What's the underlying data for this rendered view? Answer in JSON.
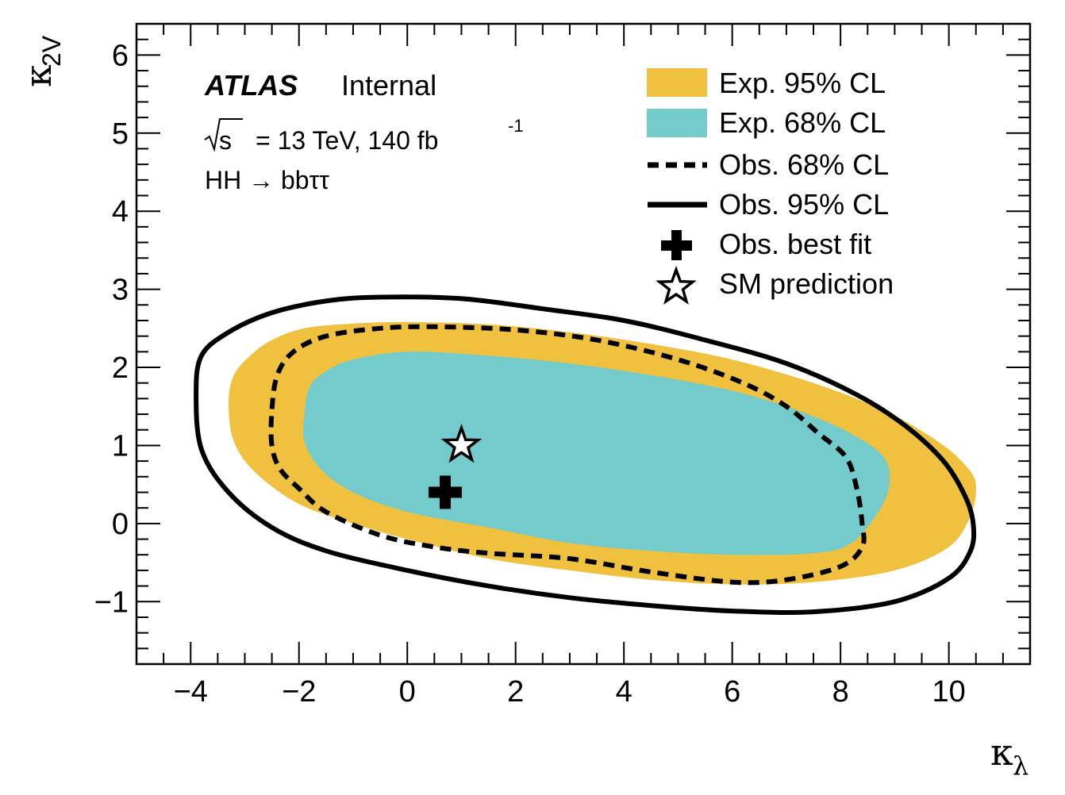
{
  "chart_data": {
    "type": "contour",
    "experiment": "ATLAS",
    "status": "Internal",
    "energy_label": "= 13 TeV, 140 fb",
    "energy_prefix": "s",
    "lumi_exponent": "-1",
    "process": "HH → bbττ",
    "xlabel": "κ",
    "xlabel_sub": "λ",
    "ylabel": "κ",
    "ylabel_sub": "2V",
    "xlim": [
      -5,
      11.5
    ],
    "ylim": [
      -1.8,
      6.4
    ],
    "xticks": [
      -4,
      -2,
      0,
      2,
      4,
      6,
      8,
      10
    ],
    "xtick_labels": [
      "−4",
      "−2",
      "0",
      "2",
      "4",
      "6",
      "8",
      "10"
    ],
    "yticks": [
      -1,
      0,
      1,
      2,
      3,
      4,
      5,
      6
    ],
    "ytick_labels": [
      "−1",
      "0",
      "1",
      "2",
      "3",
      "4",
      "5",
      "6"
    ],
    "legend_position": "top-right",
    "legend": [
      {
        "key": "exp95",
        "label": "Exp. 95% CL",
        "style": "fill",
        "color": "#efc13f"
      },
      {
        "key": "exp68",
        "label": "Exp. 68% CL",
        "style": "fill",
        "color": "#73cbcb"
      },
      {
        "key": "obs68",
        "label": "Obs. 68% CL",
        "style": "dashed",
        "color": "#000000"
      },
      {
        "key": "obs95",
        "label": "Obs. 95% CL",
        "style": "solid",
        "color": "#000000"
      },
      {
        "key": "bestfit",
        "label": "Obs. best fit",
        "style": "cross",
        "color": "#000000"
      },
      {
        "key": "sm",
        "label": "SM prediction",
        "style": "star",
        "color": "#000000"
      }
    ],
    "series": [
      {
        "key": "exp95",
        "points": [
          [
            -3.3,
            1.55
          ],
          [
            -3.2,
            1.9
          ],
          [
            -2.9,
            2.15
          ],
          [
            -2.5,
            2.35
          ],
          [
            -1.9,
            2.5
          ],
          [
            -1,
            2.56
          ],
          [
            0,
            2.58
          ],
          [
            1.5,
            2.55
          ],
          [
            3,
            2.45
          ],
          [
            4.5,
            2.3
          ],
          [
            6,
            2.1
          ],
          [
            7.5,
            1.8
          ],
          [
            8.8,
            1.45
          ],
          [
            9.8,
            1.05
          ],
          [
            10.3,
            0.75
          ],
          [
            10.5,
            0.5
          ],
          [
            10.4,
            0.1
          ],
          [
            10,
            -0.3
          ],
          [
            9,
            -0.6
          ],
          [
            7.5,
            -0.75
          ],
          [
            6,
            -0.78
          ],
          [
            4.5,
            -0.72
          ],
          [
            3,
            -0.6
          ],
          [
            1.5,
            -0.45
          ],
          [
            0,
            -0.2
          ],
          [
            -1,
            0
          ],
          [
            -2,
            0.25
          ],
          [
            -2.8,
            0.65
          ],
          [
            -3.2,
            1.05
          ]
        ]
      },
      {
        "key": "exp68",
        "points": [
          [
            -1.9,
            1.4
          ],
          [
            -1.8,
            1.75
          ],
          [
            -1.5,
            1.95
          ],
          [
            -1,
            2.1
          ],
          [
            0,
            2.2
          ],
          [
            1.5,
            2.15
          ],
          [
            3,
            2.05
          ],
          [
            4.5,
            1.9
          ],
          [
            6,
            1.7
          ],
          [
            7.2,
            1.45
          ],
          [
            8.2,
            1.15
          ],
          [
            8.8,
            0.85
          ],
          [
            8.9,
            0.5
          ],
          [
            8.7,
            0.15
          ],
          [
            8.2,
            -0.25
          ],
          [
            7.5,
            -0.38
          ],
          [
            6,
            -0.4
          ],
          [
            4.5,
            -0.35
          ],
          [
            3,
            -0.25
          ],
          [
            1.5,
            -0.05
          ],
          [
            0,
            0.15
          ],
          [
            -1,
            0.4
          ],
          [
            -1.6,
            0.7
          ],
          [
            -1.9,
            1.05
          ]
        ]
      },
      {
        "key": "obs68",
        "points": [
          [
            -2.5,
            1
          ],
          [
            -2.5,
            1.45
          ],
          [
            -2.4,
            1.9
          ],
          [
            -2.1,
            2.2
          ],
          [
            -1.5,
            2.4
          ],
          [
            -0.5,
            2.5
          ],
          [
            0.5,
            2.52
          ],
          [
            2,
            2.48
          ],
          [
            3.5,
            2.35
          ],
          [
            5,
            2.1
          ],
          [
            6.2,
            1.8
          ],
          [
            7,
            1.5
          ],
          [
            7.6,
            1.15
          ],
          [
            8.1,
            0.85
          ],
          [
            8.3,
            0.45
          ],
          [
            8.4,
            0
          ],
          [
            8.4,
            -0.3
          ],
          [
            8,
            -0.55
          ],
          [
            7,
            -0.72
          ],
          [
            6,
            -0.75
          ],
          [
            4.5,
            -0.62
          ],
          [
            3,
            -0.45
          ],
          [
            1.5,
            -0.38
          ],
          [
            0.5,
            -0.3
          ],
          [
            -0.5,
            -0.15
          ],
          [
            -1.5,
            0.15
          ],
          [
            -2,
            0.45
          ],
          [
            -2.35,
            0.7
          ]
        ]
      },
      {
        "key": "obs95",
        "points": [
          [
            -3.9,
            1.65
          ],
          [
            -3.8,
            2.15
          ],
          [
            -3.3,
            2.45
          ],
          [
            -2.5,
            2.7
          ],
          [
            -1.5,
            2.85
          ],
          [
            -0.5,
            2.9
          ],
          [
            1,
            2.88
          ],
          [
            2.5,
            2.75
          ],
          [
            4,
            2.6
          ],
          [
            5.5,
            2.35
          ],
          [
            7,
            2.05
          ],
          [
            8.3,
            1.65
          ],
          [
            9.2,
            1.25
          ],
          [
            9.9,
            0.8
          ],
          [
            10.3,
            0.35
          ],
          [
            10.45,
            0
          ],
          [
            10.4,
            -0.35
          ],
          [
            10,
            -0.7
          ],
          [
            9,
            -1
          ],
          [
            7.5,
            -1.13
          ],
          [
            6,
            -1.12
          ],
          [
            4.5,
            -1.05
          ],
          [
            3,
            -0.95
          ],
          [
            1.5,
            -0.8
          ],
          [
            0,
            -0.6
          ],
          [
            -1.5,
            -0.35
          ],
          [
            -2.5,
            -0.05
          ],
          [
            -3.3,
            0.4
          ],
          [
            -3.8,
            0.95
          ]
        ]
      }
    ],
    "best_fit": {
      "x": 0.7,
      "y": 0.4
    },
    "sm_prediction": {
      "x": 1,
      "y": 1
    }
  }
}
